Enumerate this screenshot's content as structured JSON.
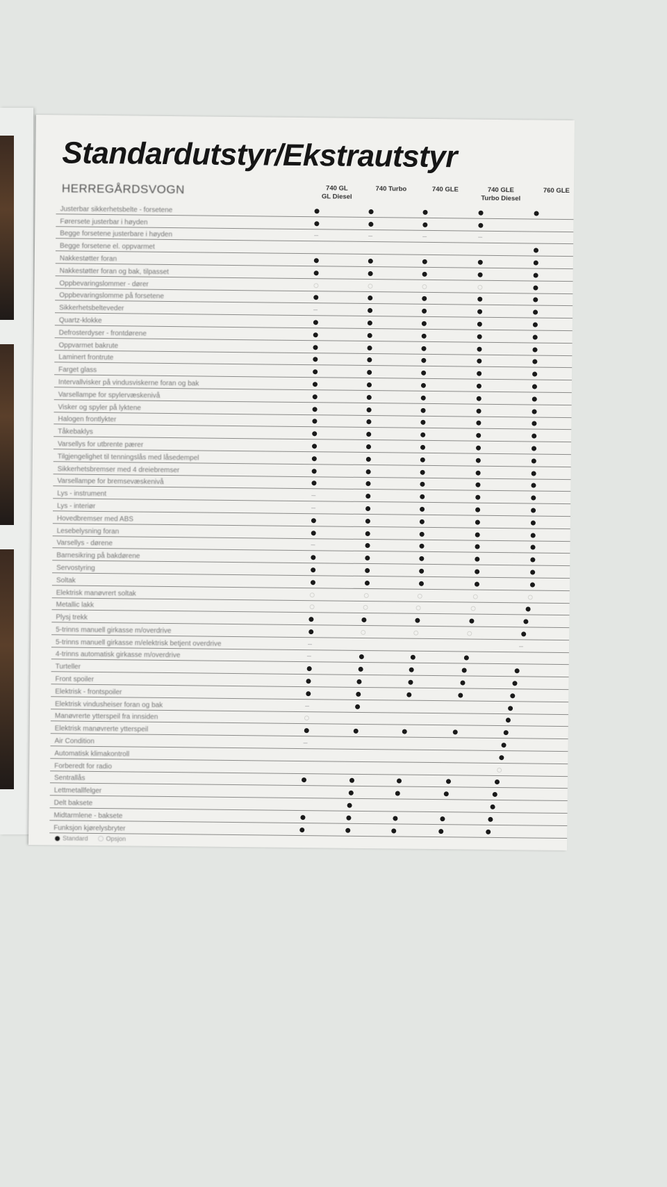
{
  "title": "Standardutstyr/Ekstrautstyr",
  "section": "HERREGÅRDSVOGN",
  "columns": [
    "740 GL\nGL Diesel",
    "740 Turbo",
    "740 GLE",
    "740 GLE\nTurbo Diesel",
    "760 GLE"
  ],
  "legend": {
    "standard": "Standard",
    "option": "Opsjon"
  },
  "colors": {
    "standard_mark": "#1a1a1a",
    "page": "#f1f1ee",
    "background": "#e3e6e3"
  },
  "rows": [
    {
      "label": "Justerbar sikkerhetsbelte - forsetene",
      "marks": [
        "S",
        "S",
        "S",
        "S",
        "S"
      ]
    },
    {
      "label": "Førersete justerbar i høyden",
      "marks": [
        "S",
        "S",
        "S",
        "S",
        ""
      ]
    },
    {
      "label": "Begge forsetene justerbare i høyden",
      "marks": [
        "-",
        "-",
        "-",
        "-",
        ""
      ]
    },
    {
      "label": "Begge forsetene el. oppvarmet",
      "marks": [
        "",
        "",
        "",
        "",
        "S"
      ]
    },
    {
      "label": "Nakkestøtter foran",
      "marks": [
        "S",
        "S",
        "S",
        "S",
        "S"
      ]
    },
    {
      "label": "Nakkestøtter foran og bak, tilpasset",
      "marks": [
        "S",
        "S",
        "S",
        "S",
        "S"
      ]
    },
    {
      "label": "Oppbevaringslommer - dører",
      "marks": [
        "O",
        "O",
        "O",
        "O",
        "S"
      ]
    },
    {
      "label": "Oppbevaringslomme på forsetene",
      "marks": [
        "S",
        "S",
        "S",
        "S",
        "S"
      ]
    },
    {
      "label": "Sikkerhetsbelteveder",
      "marks": [
        "-",
        "S",
        "S",
        "S",
        "S"
      ]
    },
    {
      "label": "Quartz-klokke",
      "marks": [
        "S",
        "S",
        "S",
        "S",
        "S"
      ]
    },
    {
      "label": "Defrosterdyser - frontdørene",
      "marks": [
        "S",
        "S",
        "S",
        "S",
        "S"
      ]
    },
    {
      "label": "Oppvarmet bakrute",
      "marks": [
        "S",
        "S",
        "S",
        "S",
        "S"
      ]
    },
    {
      "label": "Laminert frontrute",
      "marks": [
        "S",
        "S",
        "S",
        "S",
        "S"
      ]
    },
    {
      "label": "Farget glass",
      "marks": [
        "S",
        "S",
        "S",
        "S",
        "S"
      ]
    },
    {
      "label": "Intervallvisker på vindusviskerne foran og bak",
      "marks": [
        "S",
        "S",
        "S",
        "S",
        "S"
      ]
    },
    {
      "label": "Varsellampe for spylervæskenivå",
      "marks": [
        "S",
        "S",
        "S",
        "S",
        "S"
      ]
    },
    {
      "label": "Visker og spyler på lyktene",
      "marks": [
        "S",
        "S",
        "S",
        "S",
        "S"
      ]
    },
    {
      "label": "Halogen frontlykter",
      "marks": [
        "S",
        "S",
        "S",
        "S",
        "S"
      ]
    },
    {
      "label": "Tåkebaklys",
      "marks": [
        "S",
        "S",
        "S",
        "S",
        "S"
      ]
    },
    {
      "label": "Varsellys for utbrente pærer",
      "marks": [
        "S",
        "S",
        "S",
        "S",
        "S"
      ]
    },
    {
      "label": "Tilgjengelighet til tenningslås med låsedempel",
      "marks": [
        "S",
        "S",
        "S",
        "S",
        "S"
      ]
    },
    {
      "label": "Sikkerhetsbremser med 4 dreiebremser",
      "marks": [
        "S",
        "S",
        "S",
        "S",
        "S"
      ]
    },
    {
      "label": "Varsellampe for bremsevæskenivå",
      "marks": [
        "S",
        "S",
        "S",
        "S",
        "S"
      ]
    },
    {
      "label": "Lys - instrument",
      "marks": [
        "-",
        "S",
        "S",
        "S",
        "S"
      ]
    },
    {
      "label": "Lys - interiør",
      "marks": [
        "-",
        "S",
        "S",
        "S",
        "S"
      ]
    },
    {
      "label": "Hovedbremser med ABS",
      "marks": [
        "S",
        "S",
        "S",
        "S",
        "S"
      ]
    },
    {
      "label": "Lesebelysning foran",
      "marks": [
        "S",
        "S",
        "S",
        "S",
        "S"
      ]
    },
    {
      "label": "Varsellys - dørene",
      "marks": [
        "-",
        "S",
        "S",
        "S",
        "S"
      ]
    },
    {
      "label": "Barnesikring på bakdørene",
      "marks": [
        "S",
        "S",
        "S",
        "S",
        "S"
      ]
    },
    {
      "label": "Servostyring",
      "marks": [
        "S",
        "S",
        "S",
        "S",
        "S"
      ]
    },
    {
      "label": "Soltak",
      "marks": [
        "S",
        "S",
        "S",
        "S",
        "S"
      ]
    },
    {
      "label": "Elektrisk manøvrert soltak",
      "marks": [
        "O",
        "O",
        "O",
        "O",
        "O"
      ]
    },
    {
      "label": "Metallic lakk",
      "marks": [
        "O",
        "O",
        "O",
        "O",
        "S"
      ]
    },
    {
      "label": "Plysj trekk",
      "marks": [
        "S",
        "S",
        "S",
        "S",
        "S"
      ]
    },
    {
      "label": "5-trinns manuell girkasse m/overdrive",
      "marks": [
        "S",
        "O",
        "O",
        "O",
        "S"
      ]
    },
    {
      "label": "5-trinns manuell girkasse m/elektrisk betjent overdrive",
      "marks": [
        "-",
        "",
        "",
        "",
        "-"
      ]
    },
    {
      "label": "4-trinns automatisk girkasse m/overdrive",
      "marks": [
        "-",
        "S",
        "S",
        "S",
        ""
      ]
    },
    {
      "label": "Turteller",
      "marks": [
        "S",
        "S",
        "S",
        "S",
        "S"
      ]
    },
    {
      "label": "Front spoiler",
      "marks": [
        "S",
        "S",
        "S",
        "S",
        "S"
      ]
    },
    {
      "label": "Elektrisk - frontspoiler",
      "marks": [
        "S",
        "S",
        "S",
        "S",
        "S"
      ]
    },
    {
      "label": "Elektrisk vindusheiser foran og bak",
      "marks": [
        "-",
        "S",
        "",
        "",
        "S"
      ]
    },
    {
      "label": "Manøvrerte ytterspeil fra innsiden",
      "marks": [
        "O",
        "",
        "",
        "",
        "S"
      ]
    },
    {
      "label": "Elektrisk manøvrerte ytterspeil",
      "marks": [
        "S",
        "S",
        "S",
        "S",
        "S"
      ]
    },
    {
      "label": "Air Condition",
      "marks": [
        "-",
        "",
        "",
        "",
        "S"
      ]
    },
    {
      "label": "Automatisk klimakontroll",
      "marks": [
        "",
        "",
        "",
        "",
        "S"
      ]
    },
    {
      "label": "Forberedt for radio",
      "marks": [
        "",
        "",
        "",
        "",
        "O"
      ]
    },
    {
      "label": "Sentrallås",
      "marks": [
        "S",
        "S",
        "S",
        "S",
        "S"
      ]
    },
    {
      "label": "Lettmetallfelger",
      "marks": [
        "",
        "S",
        "S",
        "S",
        "S"
      ]
    },
    {
      "label": "Delt baksete",
      "marks": [
        "",
        "S",
        "",
        "",
        "S"
      ]
    },
    {
      "label": "Midtarmlene - baksete",
      "marks": [
        "S",
        "S",
        "S",
        "S",
        "S"
      ]
    },
    {
      "label": "Funksjon kjørelysbryter",
      "marks": [
        "S",
        "S",
        "S",
        "S",
        "S"
      ]
    }
  ]
}
